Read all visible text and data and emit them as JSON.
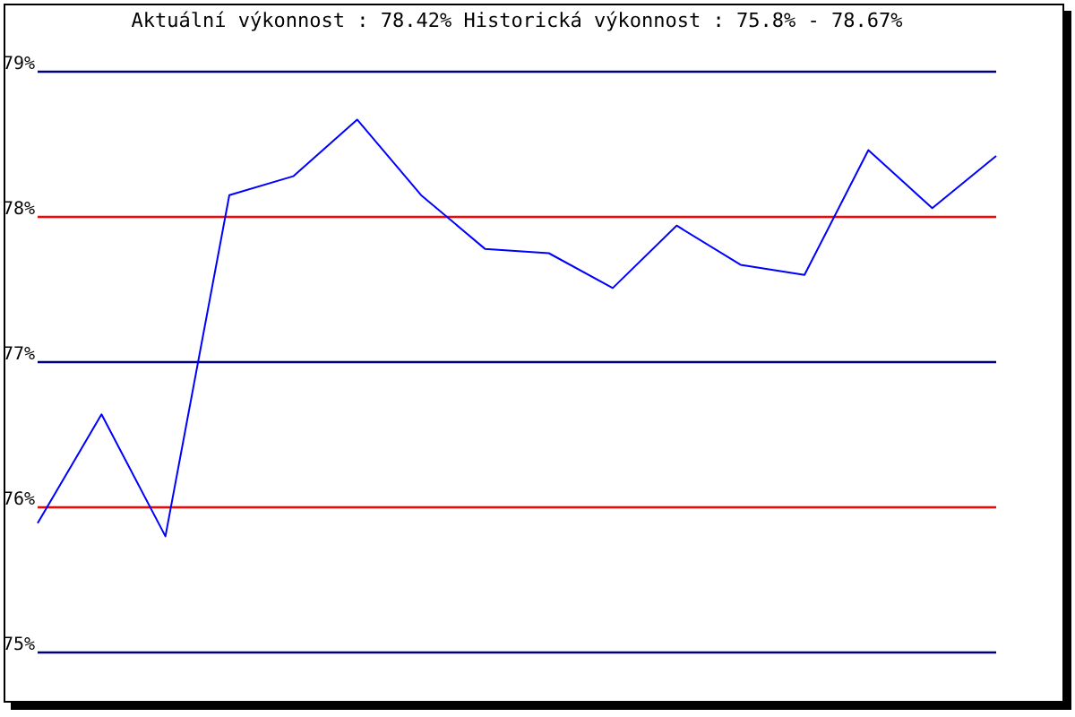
{
  "chart_data": {
    "type": "line",
    "title": "Aktuální výkonnost : 78.42%  Historická výkonnost : 75.8% - 78.67%",
    "categories": [
      null,
      null,
      null,
      null,
      null,
      null,
      null,
      null,
      null,
      null,
      null,
      null,
      null,
      null,
      null,
      null
    ],
    "series": [
      {
        "color": "#0000ff",
        "values": [
          75.89,
          76.64,
          75.8,
          78.15,
          78.28,
          78.67,
          78.15,
          77.78,
          77.75,
          77.51,
          77.94,
          77.67,
          77.6,
          78.46,
          78.06,
          78.42
        ]
      }
    ],
    "ylim": [
      75,
      79
    ],
    "yticks": [
      {
        "value": 75,
        "label": "75%"
      },
      {
        "value": 76,
        "label": "76%"
      },
      {
        "value": 77,
        "label": "77%"
      },
      {
        "value": 78,
        "label": "78%"
      },
      {
        "value": 79,
        "label": "79%"
      }
    ],
    "ref_lines": [
      {
        "axis": "y",
        "value": 79,
        "color": "#000080"
      },
      {
        "axis": "y",
        "value": 78,
        "color": "#ff0000"
      },
      {
        "axis": "y",
        "value": 77,
        "color": "#000080"
      },
      {
        "axis": "y",
        "value": 76,
        "color": "#ff0000"
      },
      {
        "axis": "y",
        "value": 75,
        "color": "#000080"
      }
    ]
  }
}
